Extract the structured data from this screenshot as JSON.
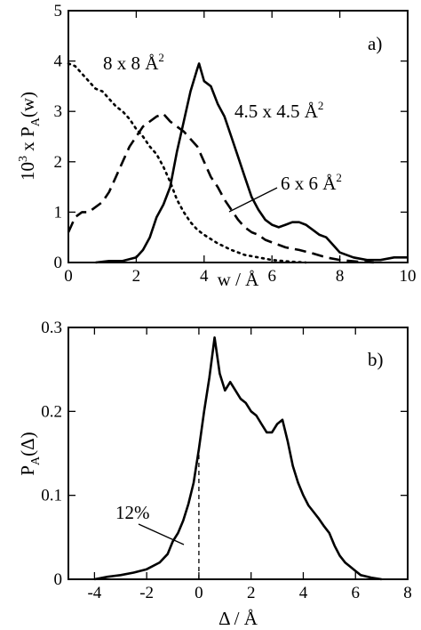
{
  "chart_data": [
    {
      "panel": "a)",
      "type": "line",
      "xlabel": "w / Å",
      "ylabel": "10³ x P_A(w)",
      "ylabel_main": "10",
      "ylabel_sup": "3",
      "ylabel_mid": " x P",
      "ylabel_sub": "A",
      "ylabel_end": "(w)",
      "xlim": [
        0,
        10
      ],
      "ylim": [
        0,
        5
      ],
      "xticks": [
        "0",
        "2",
        "4",
        "6",
        "8",
        "10"
      ],
      "yticks": [
        "0",
        "1",
        "2",
        "3",
        "4",
        "5"
      ],
      "grid": false,
      "series": [
        {
          "name": "8 x 8 Å²",
          "style": "dotted",
          "points": [
            [
              0,
              3.95
            ],
            [
              0.2,
              3.9
            ],
            [
              0.4,
              3.75
            ],
            [
              0.6,
              3.6
            ],
            [
              0.8,
              3.45
            ],
            [
              1.0,
              3.4
            ],
            [
              1.2,
              3.25
            ],
            [
              1.4,
              3.1
            ],
            [
              1.6,
              3.0
            ],
            [
              1.8,
              2.85
            ],
            [
              2.0,
              2.65
            ],
            [
              2.2,
              2.5
            ],
            [
              2.4,
              2.3
            ],
            [
              2.6,
              2.15
            ],
            [
              2.8,
              1.9
            ],
            [
              3.0,
              1.6
            ],
            [
              3.2,
              1.25
            ],
            [
              3.4,
              1.0
            ],
            [
              3.6,
              0.8
            ],
            [
              3.8,
              0.65
            ],
            [
              4.0,
              0.55
            ],
            [
              4.4,
              0.38
            ],
            [
              4.8,
              0.25
            ],
            [
              5.2,
              0.15
            ],
            [
              5.6,
              0.1
            ],
            [
              6.0,
              0.05
            ],
            [
              6.5,
              0.02
            ],
            [
              7,
              0.0
            ]
          ]
        },
        {
          "name": "6 x 6 Å²",
          "style": "dashed",
          "points": [
            [
              0,
              0.6
            ],
            [
              0.2,
              0.9
            ],
            [
              0.4,
              1.0
            ],
            [
              0.6,
              1.0
            ],
            [
              0.8,
              1.1
            ],
            [
              1.0,
              1.2
            ],
            [
              1.2,
              1.4
            ],
            [
              1.4,
              1.7
            ],
            [
              1.6,
              2.0
            ],
            [
              1.8,
              2.3
            ],
            [
              2.0,
              2.5
            ],
            [
              2.2,
              2.7
            ],
            [
              2.4,
              2.8
            ],
            [
              2.6,
              2.9
            ],
            [
              2.8,
              2.95
            ],
            [
              3.0,
              2.8
            ],
            [
              3.2,
              2.7
            ],
            [
              3.4,
              2.6
            ],
            [
              3.6,
              2.45
            ],
            [
              3.8,
              2.3
            ],
            [
              4.0,
              2.0
            ],
            [
              4.2,
              1.7
            ],
            [
              4.4,
              1.5
            ],
            [
              4.6,
              1.25
            ],
            [
              4.8,
              1.05
            ],
            [
              5.0,
              0.85
            ],
            [
              5.2,
              0.7
            ],
            [
              5.4,
              0.6
            ],
            [
              5.6,
              0.55
            ],
            [
              5.8,
              0.45
            ],
            [
              6.0,
              0.4
            ],
            [
              6.4,
              0.3
            ],
            [
              6.8,
              0.25
            ],
            [
              7.2,
              0.18
            ],
            [
              7.6,
              0.1
            ],
            [
              8.0,
              0.05
            ],
            [
              8.5,
              0.02
            ],
            [
              9,
              0.0
            ]
          ]
        },
        {
          "name": "4.5 x 4.5 Å²",
          "style": "solid",
          "points": [
            [
              0.8,
              0.0
            ],
            [
              1.2,
              0.03
            ],
            [
              1.6,
              0.03
            ],
            [
              2.0,
              0.1
            ],
            [
              2.2,
              0.25
            ],
            [
              2.4,
              0.5
            ],
            [
              2.6,
              0.9
            ],
            [
              2.8,
              1.15
            ],
            [
              3.0,
              1.5
            ],
            [
              3.2,
              2.2
            ],
            [
              3.4,
              2.8
            ],
            [
              3.6,
              3.4
            ],
            [
              3.8,
              3.85
            ],
            [
              3.85,
              3.95
            ],
            [
              4.0,
              3.6
            ],
            [
              4.2,
              3.5
            ],
            [
              4.4,
              3.15
            ],
            [
              4.6,
              2.9
            ],
            [
              4.8,
              2.5
            ],
            [
              5.0,
              2.1
            ],
            [
              5.2,
              1.7
            ],
            [
              5.4,
              1.3
            ],
            [
              5.6,
              1.05
            ],
            [
              5.8,
              0.85
            ],
            [
              6.0,
              0.75
            ],
            [
              6.2,
              0.7
            ],
            [
              6.4,
              0.75
            ],
            [
              6.6,
              0.8
            ],
            [
              6.8,
              0.8
            ],
            [
              7.0,
              0.75
            ],
            [
              7.2,
              0.65
            ],
            [
              7.4,
              0.55
            ],
            [
              7.6,
              0.5
            ],
            [
              7.8,
              0.35
            ],
            [
              8.0,
              0.2
            ],
            [
              8.4,
              0.1
            ],
            [
              8.8,
              0.05
            ],
            [
              9.2,
              0.05
            ],
            [
              9.6,
              0.1
            ],
            [
              10,
              0.1
            ]
          ]
        }
      ],
      "annotations": {
        "label_8": "8 x 8 Å",
        "label_45": "4.5 x 4.5 Å",
        "label_6": "6 x 6 Å",
        "sup": "2"
      }
    },
    {
      "panel": "b)",
      "type": "line",
      "xlabel": "Δ / Å",
      "ylabel_main": "P",
      "ylabel_sub": "A",
      "ylabel_end": "(Δ)",
      "xlim": [
        -5,
        8
      ],
      "ylim": [
        0,
        0.3
      ],
      "xticks": [
        "-4",
        "-2",
        "0",
        "2",
        "4",
        "6",
        "8"
      ],
      "yticks": [
        "0",
        "0.1",
        "0.2",
        "0.3"
      ],
      "grid": false,
      "marker_x": 0,
      "annotation": "12%",
      "series": [
        {
          "style": "solid",
          "points": [
            [
              -4.0,
              0.0
            ],
            [
              -3.5,
              0.003
            ],
            [
              -3.0,
              0.005
            ],
            [
              -2.5,
              0.008
            ],
            [
              -2.0,
              0.012
            ],
            [
              -1.5,
              0.02
            ],
            [
              -1.2,
              0.03
            ],
            [
              -1.0,
              0.045
            ],
            [
              -0.8,
              0.055
            ],
            [
              -0.6,
              0.07
            ],
            [
              -0.4,
              0.09
            ],
            [
              -0.2,
              0.115
            ],
            [
              0.0,
              0.155
            ],
            [
              0.2,
              0.2
            ],
            [
              0.4,
              0.24
            ],
            [
              0.6,
              0.288
            ],
            [
              0.8,
              0.245
            ],
            [
              1.0,
              0.225
            ],
            [
              1.2,
              0.235
            ],
            [
              1.4,
              0.225
            ],
            [
              1.6,
              0.215
            ],
            [
              1.8,
              0.21
            ],
            [
              2.0,
              0.2
            ],
            [
              2.2,
              0.195
            ],
            [
              2.4,
              0.185
            ],
            [
              2.6,
              0.175
            ],
            [
              2.8,
              0.175
            ],
            [
              3.0,
              0.185
            ],
            [
              3.2,
              0.19
            ],
            [
              3.4,
              0.165
            ],
            [
              3.6,
              0.135
            ],
            [
              3.8,
              0.115
            ],
            [
              4.0,
              0.1
            ],
            [
              4.2,
              0.088
            ],
            [
              4.4,
              0.08
            ],
            [
              4.6,
              0.072
            ],
            [
              4.8,
              0.063
            ],
            [
              5.0,
              0.055
            ],
            [
              5.2,
              0.04
            ],
            [
              5.4,
              0.028
            ],
            [
              5.6,
              0.02
            ],
            [
              5.8,
              0.015
            ],
            [
              6.0,
              0.01
            ],
            [
              6.2,
              0.005
            ],
            [
              6.6,
              0.002
            ],
            [
              7.0,
              0.0
            ]
          ]
        }
      ]
    }
  ]
}
